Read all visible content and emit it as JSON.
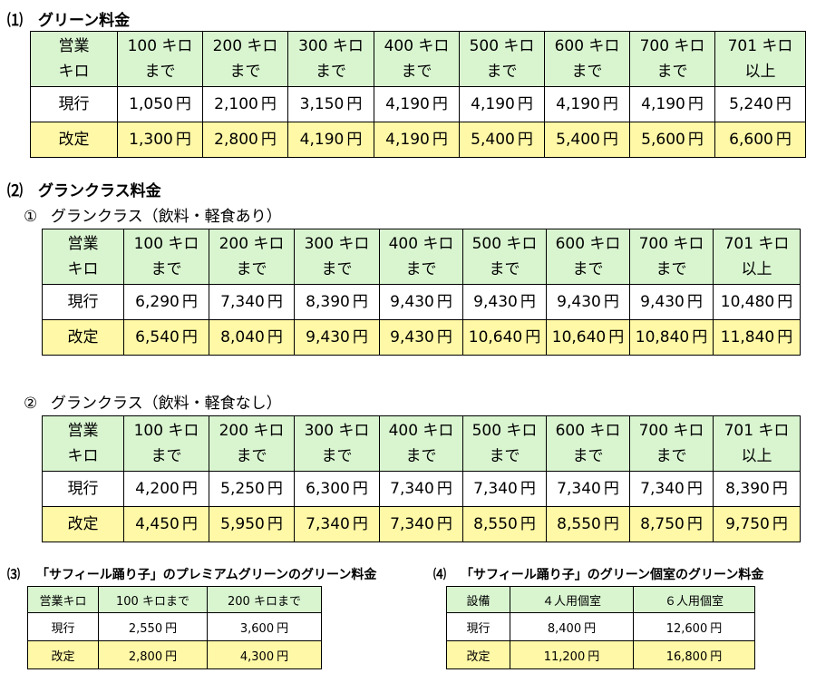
{
  "section1": {
    "number": "⑴",
    "title": "グリーン料金",
    "header": [
      [
        "営業",
        "キロ"
      ],
      [
        "100 キロ",
        "まで"
      ],
      [
        "200 キロ",
        "まで"
      ],
      [
        "300 キロ",
        "まで"
      ],
      [
        "400 キロ",
        "まで"
      ],
      [
        "500 キロ",
        "まで"
      ],
      [
        "600 キロ",
        "まで"
      ],
      [
        "700 キロ",
        "まで"
      ],
      [
        "701 キロ",
        "以上"
      ]
    ],
    "rows": [
      {
        "label": "現行",
        "values": [
          "1,050",
          "2,100",
          "3,150",
          "4,190",
          "4,190",
          "4,190",
          "4,190",
          "5,240"
        ]
      },
      {
        "label": "改定",
        "values": [
          "1,300",
          "2,800",
          "4,190",
          "4,190",
          "5,400",
          "5,400",
          "5,600",
          "6,600"
        ]
      }
    ]
  },
  "section2": {
    "number": "⑵",
    "title": "グランクラス料金",
    "sub1": {
      "number": "①",
      "title": "グランクラス（飲料・軽食あり）",
      "header": [
        [
          "営業",
          "キロ"
        ],
        [
          "100 キロ",
          "まで"
        ],
        [
          "200 キロ",
          "まで"
        ],
        [
          "300 キロ",
          "まで"
        ],
        [
          "400 キロ",
          "まで"
        ],
        [
          "500 キロ",
          "まで"
        ],
        [
          "600 キロ",
          "まで"
        ],
        [
          "700 キロ",
          "まで"
        ],
        [
          "701 キロ",
          "以上"
        ]
      ],
      "rows": [
        {
          "label": "現行",
          "values": [
            "6,290",
            "7,340",
            "8,390",
            "9,430",
            "9,430",
            "9,430",
            "9,430",
            "10,480"
          ]
        },
        {
          "label": "改定",
          "values": [
            "6,540",
            "8,040",
            "9,430",
            "9,430",
            "10,640",
            "10,640",
            "10,840",
            "11,840"
          ]
        }
      ]
    },
    "sub2": {
      "number": "②",
      "title": "グランクラス（飲料・軽食なし）",
      "header": [
        [
          "営業",
          "キロ"
        ],
        [
          "100 キロ",
          "まで"
        ],
        [
          "200 キロ",
          "まで"
        ],
        [
          "300 キロ",
          "まで"
        ],
        [
          "400 キロ",
          "まで"
        ],
        [
          "500 キロ",
          "まで"
        ],
        [
          "600 キロ",
          "まで"
        ],
        [
          "700 キロ",
          "まで"
        ],
        [
          "701 キロ",
          "以上"
        ]
      ],
      "rows": [
        {
          "label": "現行",
          "values": [
            "4,200",
            "5,250",
            "6,300",
            "7,340",
            "7,340",
            "7,340",
            "7,340",
            "8,390"
          ]
        },
        {
          "label": "改定",
          "values": [
            "4,450",
            "5,950",
            "7,340",
            "7,340",
            "8,550",
            "8,550",
            "8,750",
            "9,750"
          ]
        }
      ]
    }
  },
  "section3": {
    "number": "⑶",
    "title": "「サフィール踊り子」のプレミアムグリーンのグリーン料金",
    "header": [
      "営業キロ",
      "100 キロまで",
      "200 キロまで"
    ],
    "rows": [
      {
        "label": "現行",
        "values": [
          "2,550",
          "3,600"
        ]
      },
      {
        "label": "改定",
        "values": [
          "2,800",
          "4,300"
        ]
      }
    ]
  },
  "section4": {
    "number": "⑷",
    "title": "「サフィール踊り子」のグリーン個室のグリーン料金",
    "header": [
      "設備",
      "４人用個室",
      "６人用個室"
    ],
    "rows": [
      {
        "label": "現行",
        "values": [
          "8,400",
          "12,600"
        ]
      },
      {
        "label": "改定",
        "values": [
          "11,200",
          "16,800"
        ]
      }
    ]
  },
  "currency": "円",
  "colors": {
    "header_bg": "#d9f5d0",
    "revised_bg": "#fff8a6",
    "current_bg": "#ffffff",
    "border": "#000000"
  }
}
